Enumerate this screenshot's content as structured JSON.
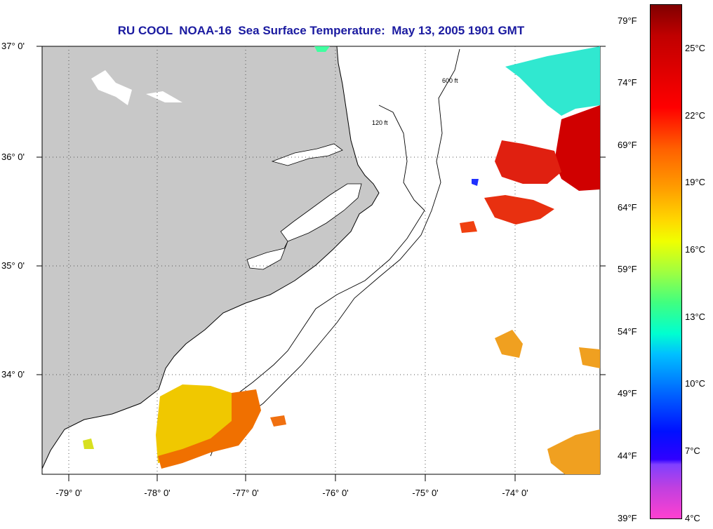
{
  "title": "RU COOL  NOAA-16  Sea Surface Temperature:  May 13, 2005 1901 GMT",
  "latitude_labels": [
    "37° 0'",
    "36° 0'",
    "35° 0'",
    "34° 0'"
  ],
  "longitude_labels": [
    "-79° 0'",
    "-78° 0'",
    "-77° 0'",
    "-76° 0'",
    "-75° 0'",
    "-74° 0'"
  ],
  "colorbar_fahrenheit": [
    "79°F",
    "74°F",
    "69°F",
    "64°F",
    "59°F",
    "54°F",
    "49°F",
    "44°F",
    "39°F"
  ],
  "colorbar_celsius": [
    "25°C",
    "22°C",
    "19°C",
    "16°C",
    "13°C",
    "10°C",
    "7°C",
    "4°C"
  ],
  "isobath_labels": [
    "120 ft",
    "600 ft"
  ],
  "colors": {
    "title": "#1a1aa0",
    "land": "#c8c8c8",
    "warm_water": "#e02010",
    "gulf_stream": "#d00000",
    "nearshore": "#f0a000"
  }
}
